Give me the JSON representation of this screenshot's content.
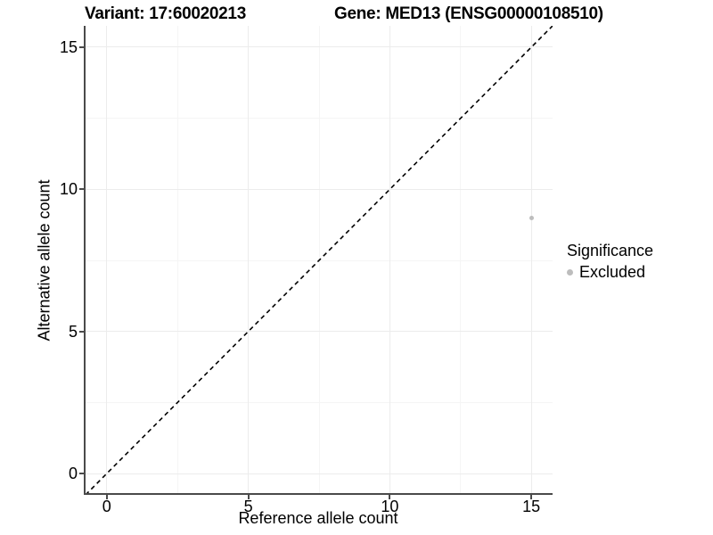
{
  "chart_data": {
    "type": "scatter",
    "titles": {
      "variant": "Variant: 17:60020213",
      "gene": "Gene: MED13 (ENSG00000108510)"
    },
    "xlabel": "Reference allele count",
    "ylabel": "Alternative allele count",
    "xlim": [
      -0.75,
      15.75
    ],
    "ylim": [
      -0.75,
      15.75
    ],
    "x_ticks": [
      0,
      5,
      10,
      15
    ],
    "y_ticks": [
      0,
      5,
      10,
      15
    ],
    "x_minor_gridlines": [
      2.5,
      7.5,
      12.5
    ],
    "y_minor_gridlines": [
      2.5,
      7.5,
      12.5
    ],
    "grid": "major and minor gridlines, light gray on white",
    "points": [
      {
        "x": 15,
        "y": 9,
        "significance": "Excluded",
        "color": "#bdbdbd"
      }
    ],
    "reference_line": {
      "type": "identity y=x",
      "style": "dashed",
      "x1": -0.75,
      "y1": -0.75,
      "x2": 15.75,
      "y2": 15.75,
      "color": "#000000"
    },
    "legend": {
      "title": "Significance",
      "position": "right",
      "entries": [
        {
          "label": "Excluded",
          "color": "#bdbdbd",
          "marker": "circle"
        }
      ]
    },
    "colors": {
      "background": "#ffffff",
      "axis_line": "#4a4a4a",
      "text": "#000000",
      "grid_major": "#ececec",
      "grid_minor": "#f5f5f5",
      "point": "#bdbdbd"
    }
  }
}
